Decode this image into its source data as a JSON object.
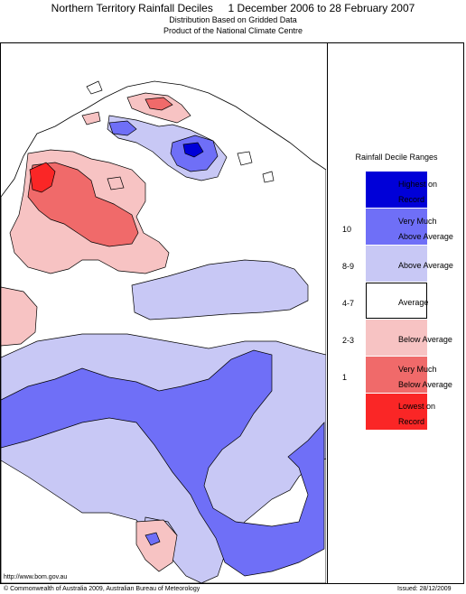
{
  "header": {
    "title": "Northern Territory Rainfall Deciles     1 December 2006 to 28 February 2007",
    "subtitle1": "Distribution Based on Gridded Data",
    "subtitle2": "Product of the National Climate Centre"
  },
  "legend": {
    "title": "Rainfall Decile Ranges",
    "items": [
      {
        "code": "",
        "line1": "Highest on",
        "line2": "Record",
        "color": "#0000d8"
      },
      {
        "code": "10",
        "line1": "Very Much",
        "line2": "Above Average",
        "color": "#6f6ff7"
      },
      {
        "code": "8-9",
        "line1": "Above Average",
        "line2": "",
        "color": "#c8c8f5"
      },
      {
        "code": "4-7",
        "line1": "Average",
        "line2": "",
        "color": "#ffffff"
      },
      {
        "code": "2-3",
        "line1": "Below Average",
        "line2": "",
        "color": "#f7c3c3"
      },
      {
        "code": "1",
        "line1": "Very Much",
        "line2": "Below Average",
        "color": "#f06a6a"
      },
      {
        "code": "",
        "line1": "Lowest on",
        "line2": "Record",
        "color": "#fa2626"
      }
    ]
  },
  "footer": {
    "url": "http://www.bom.gov.au",
    "copyright": "© Commonwealth of Australia 2009, Australian Bureau of Meteorology",
    "issued": "Issued: 28/12/2009"
  }
}
